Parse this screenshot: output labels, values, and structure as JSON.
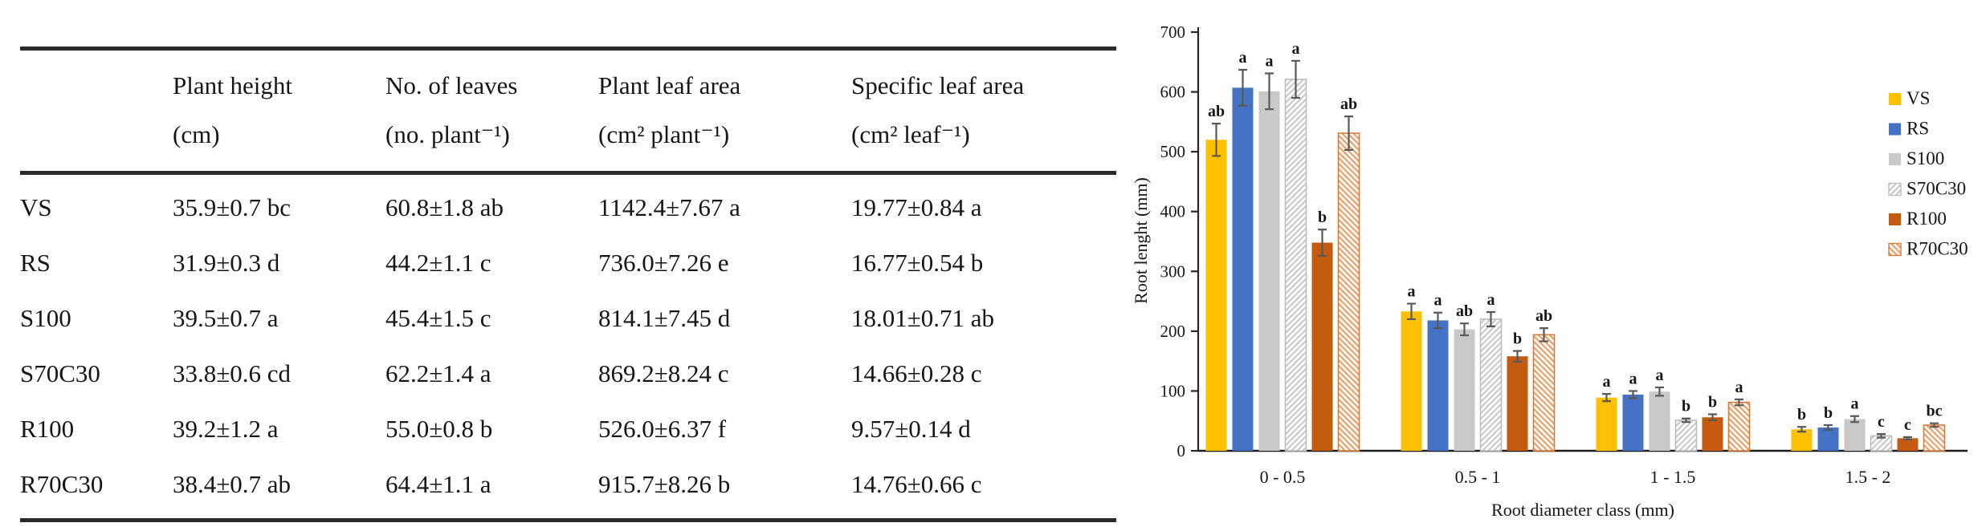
{
  "figure": {
    "description_left": "treatment summary table",
    "description_right": "root length by root diameter class bar chart"
  },
  "chart_data": [
    {
      "type": "table",
      "columns": [
        {
          "line1": "",
          "line2": ""
        },
        {
          "line1": "Plant height",
          "line2": "(cm)"
        },
        {
          "line1": "No. of leaves",
          "line2": "(no. plant⁻¹)"
        },
        {
          "line1": "Plant leaf area",
          "line2": "(cm² plant⁻¹)"
        },
        {
          "line1": "Specific leaf area",
          "line2": "(cm² leaf⁻¹)"
        }
      ],
      "rows": [
        {
          "label": "VS",
          "cells": [
            "35.9±0.7 bc",
            "60.8±1.8 ab",
            "1142.4±7.67 a",
            "19.77±0.84 a"
          ]
        },
        {
          "label": "RS",
          "cells": [
            "31.9±0.3 d",
            "44.2±1.1 c",
            "736.0±7.26 e",
            "16.77±0.54 b"
          ]
        },
        {
          "label": "S100",
          "cells": [
            "39.5±0.7 a",
            "45.4±1.5 c",
            "814.1±7.45 d",
            "18.01±0.71 ab"
          ]
        },
        {
          "label": "S70C30",
          "cells": [
            "33.8±0.6 cd",
            "62.2±1.4 a",
            "869.2±8.24 c",
            "14.66±0.28 c"
          ]
        },
        {
          "label": "R100",
          "cells": [
            "39.2±1.2 a",
            "55.0±0.8 b",
            "526.0±6.37 f",
            "9.57±0.14 d"
          ]
        },
        {
          "label": "R70C30",
          "cells": [
            "38.4±0.7 ab",
            "64.4±1.1 a",
            "915.7±8.26 b",
            "14.76±0.66 c"
          ]
        }
      ]
    },
    {
      "type": "bar",
      "title": "",
      "xlabel": "Root diameter class (mm)",
      "ylabel": "Root lenght (mm)",
      "ylim": [
        0,
        700
      ],
      "yticks": [
        0,
        100,
        200,
        300,
        400,
        500,
        600,
        700
      ],
      "grid": false,
      "legend_position": "right",
      "categories": [
        "0 - 0.5",
        "0.5 - 1",
        "1 - 1.5",
        "1.5 - 2"
      ],
      "axis_color": "#262626",
      "error_bar_color": "#595959",
      "series": [
        {
          "name": "VS",
          "fill": "#FFC000",
          "pattern": "solid",
          "values": [
            520,
            233,
            89,
            36
          ],
          "errors": [
            27,
            13,
            6,
            4
          ],
          "letters": [
            "ab",
            "a",
            "a",
            "b"
          ]
        },
        {
          "name": "RS",
          "fill": "#4472C4",
          "pattern": "solid",
          "values": [
            607,
            218,
            94,
            39
          ],
          "errors": [
            30,
            13,
            6,
            4
          ],
          "letters": [
            "a",
            "a",
            "a",
            "b"
          ]
        },
        {
          "name": "S100",
          "fill": "#C9C9C9",
          "pattern": "solid",
          "values": [
            601,
            203,
            99,
            53
          ],
          "errors": [
            30,
            10,
            7,
            5
          ],
          "letters": [
            "a",
            "ab",
            "a",
            "a"
          ]
        },
        {
          "name": "S70C30",
          "fill": "#FFFFFF",
          "pattern": "diag-up",
          "hatch_color": "#C8C8C8",
          "border": "#BDBDBD",
          "values": [
            621,
            220,
            51,
            25
          ],
          "errors": [
            31,
            12,
            3,
            3
          ],
          "letters": [
            "a",
            "a",
            "b",
            "c"
          ]
        },
        {
          "name": "R100",
          "fill": "#C55A11",
          "pattern": "solid",
          "values": [
            348,
            158,
            56,
            21
          ],
          "errors": [
            22,
            9,
            5,
            2
          ],
          "letters": [
            "b",
            "b",
            "b",
            "c"
          ]
        },
        {
          "name": "R70C30",
          "fill": "#FFFFFF",
          "pattern": "diag-down",
          "hatch_color": "#ED9B63",
          "border": "#D97C3A",
          "values": [
            531,
            194,
            81,
            43
          ],
          "errors": [
            28,
            11,
            5,
            3
          ],
          "letters": [
            "ab",
            "ab",
            "a",
            "bc"
          ]
        }
      ]
    }
  ]
}
